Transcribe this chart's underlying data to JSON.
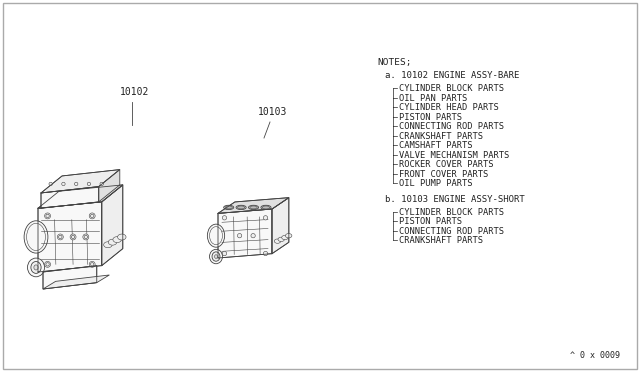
{
  "bg_color": "#ffffff",
  "border_color": "#999999",
  "notes_header": "NOTES;",
  "section_a_title": "a. 10102 ENGINE ASSY-BARE",
  "section_a_items": [
    "CYLINDER BLOCK PARTS",
    "OIL PAN PARTS",
    "CYLINDER HEAD PARTS",
    "PISTON PARTS",
    "CONNECTING ROD PARTS",
    "CRANKSHAFT PARTS",
    "CAMSHAFT PARTS",
    "VALVE MECHANISM PARTS",
    "ROCKER COVER PARTS",
    "FRONT COVER PARTS",
    "OIL PUMP PARTS"
  ],
  "section_b_title": "b. 10103 ENGINE ASSY-SHORT",
  "section_b_items": [
    "CYLINDER BLOCK PARTS",
    "PISTON PARTS",
    "CONNECTING ROD PARTS",
    "CRANKSHAFT PARTS"
  ],
  "label_10102": "10102",
  "label_10103": "10103",
  "footer": "^ 0 x 0009",
  "font_family": "monospace",
  "notes_fontsize": 6.8,
  "label_fontsize": 7.0,
  "line_color": "#444444",
  "fill_light": "#f8f8f8",
  "fill_mid": "#eeeeee",
  "fill_dark": "#e0e0e0",
  "text_color": "#222222"
}
